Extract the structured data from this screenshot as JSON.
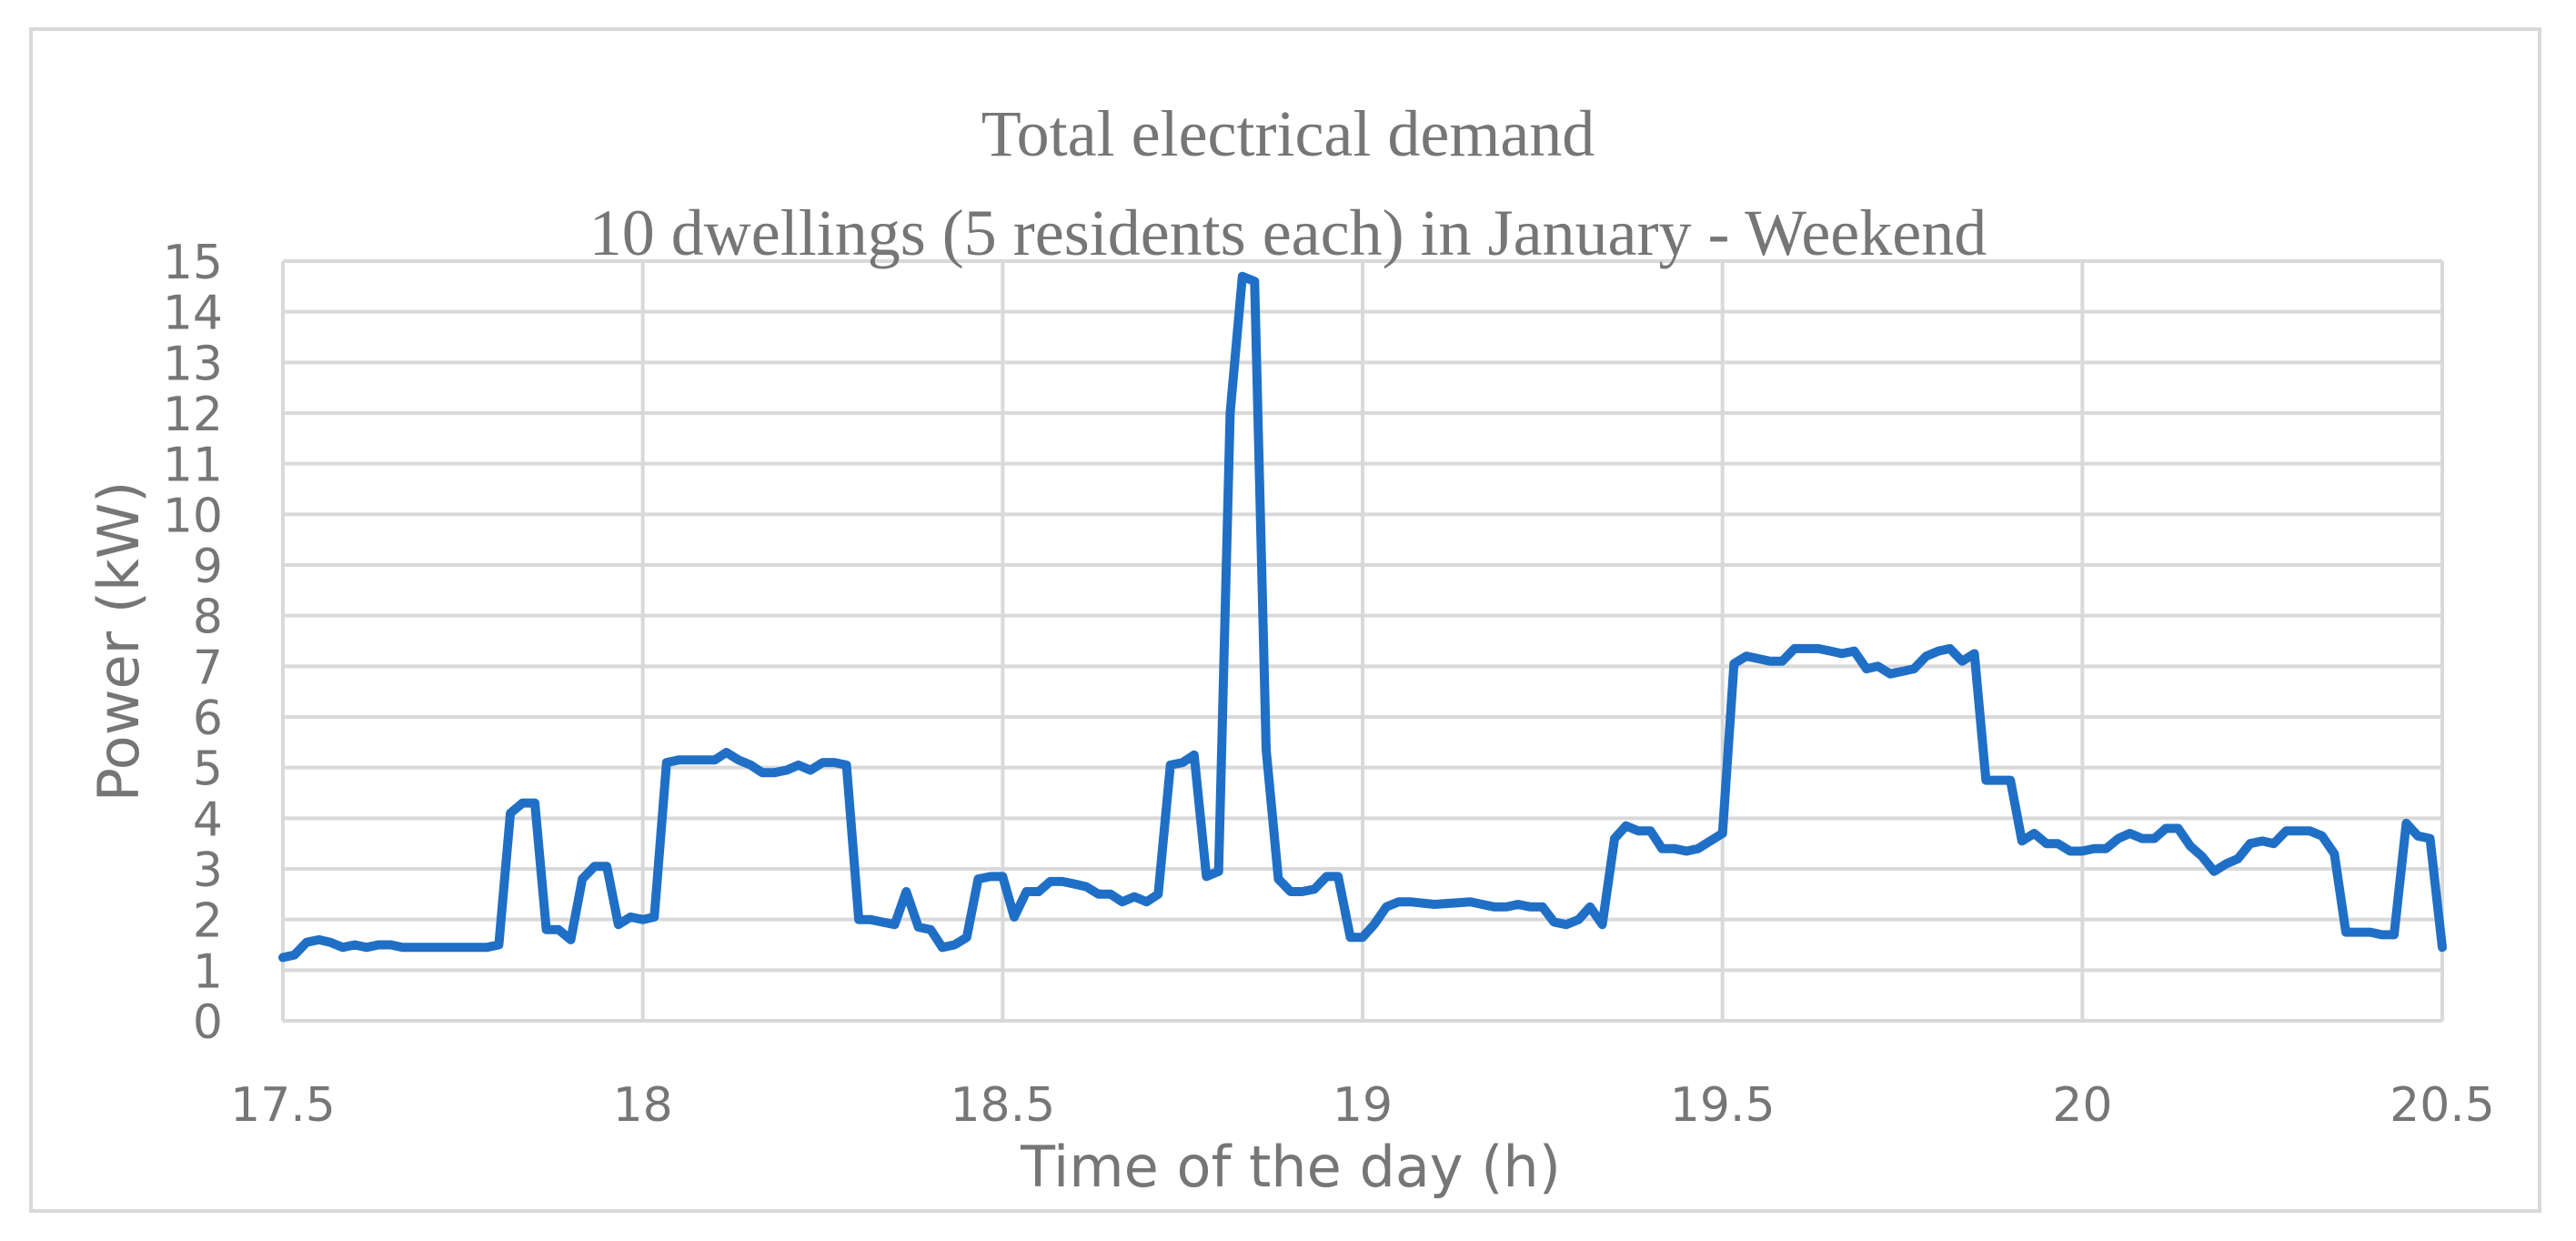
{
  "chart_data": {
    "type": "line",
    "title": "Total electrical demand",
    "subtitle": "10 dwellings (5 residents each) in January - Weekend",
    "xlabel": "Time of the day (h)",
    "ylabel": "Power (kW)",
    "xlim": [
      17.5,
      20.5
    ],
    "ylim": [
      0,
      15
    ],
    "x_ticks": [
      17.5,
      18,
      18.5,
      19,
      19.5,
      20,
      20.5
    ],
    "x_tick_labels": [
      "17.5",
      "18",
      "18.5",
      "19",
      "19.5",
      "20",
      "20.5"
    ],
    "y_ticks": [
      0,
      1,
      2,
      3,
      4,
      5,
      6,
      7,
      8,
      9,
      10,
      11,
      12,
      13,
      14,
      15
    ],
    "y_tick_labels": [
      "0",
      "1",
      "2",
      "3",
      "4",
      "5",
      "6",
      "7",
      "8",
      "9",
      "10",
      "11",
      "12",
      "13",
      "14",
      "15"
    ],
    "grid": true,
    "legend": "none",
    "colors": {
      "line": "#1f6fc6",
      "grid": "#d9d9d9",
      "text": "#767676",
      "frame": "#d9d9d9"
    },
    "series": [
      {
        "values": [
          [
            17.5,
            1.25
          ],
          [
            17.516,
            1.3
          ],
          [
            17.533,
            1.55
          ],
          [
            17.55,
            1.6
          ],
          [
            17.566,
            1.55
          ],
          [
            17.583,
            1.45
          ],
          [
            17.6,
            1.5
          ],
          [
            17.616,
            1.45
          ],
          [
            17.633,
            1.5
          ],
          [
            17.65,
            1.5
          ],
          [
            17.666,
            1.45
          ],
          [
            17.7,
            1.45
          ],
          [
            17.75,
            1.45
          ],
          [
            17.783,
            1.45
          ],
          [
            17.8,
            1.5
          ],
          [
            17.816,
            4.1
          ],
          [
            17.833,
            4.3
          ],
          [
            17.85,
            4.3
          ],
          [
            17.866,
            1.8
          ],
          [
            17.883,
            1.8
          ],
          [
            17.9,
            1.6
          ],
          [
            17.916,
            2.8
          ],
          [
            17.933,
            3.05
          ],
          [
            17.95,
            3.05
          ],
          [
            17.966,
            1.9
          ],
          [
            17.983,
            2.05
          ],
          [
            18.0,
            2.0
          ],
          [
            18.016,
            2.05
          ],
          [
            18.033,
            5.1
          ],
          [
            18.05,
            5.15
          ],
          [
            18.066,
            5.15
          ],
          [
            18.1,
            5.15
          ],
          [
            18.116,
            5.3
          ],
          [
            18.133,
            5.15
          ],
          [
            18.15,
            5.05
          ],
          [
            18.166,
            4.9
          ],
          [
            18.183,
            4.9
          ],
          [
            18.2,
            4.95
          ],
          [
            18.216,
            5.05
          ],
          [
            18.233,
            4.95
          ],
          [
            18.25,
            5.1
          ],
          [
            18.266,
            5.1
          ],
          [
            18.283,
            5.05
          ],
          [
            18.3,
            2.0
          ],
          [
            18.316,
            2.0
          ],
          [
            18.333,
            1.95
          ],
          [
            18.35,
            1.9
          ],
          [
            18.366,
            2.55
          ],
          [
            18.383,
            1.85
          ],
          [
            18.4,
            1.8
          ],
          [
            18.416,
            1.45
          ],
          [
            18.433,
            1.5
          ],
          [
            18.45,
            1.65
          ],
          [
            18.466,
            2.8
          ],
          [
            18.483,
            2.85
          ],
          [
            18.5,
            2.85
          ],
          [
            18.516,
            2.05
          ],
          [
            18.533,
            2.55
          ],
          [
            18.55,
            2.55
          ],
          [
            18.566,
            2.75
          ],
          [
            18.583,
            2.75
          ],
          [
            18.6,
            2.7
          ],
          [
            18.616,
            2.65
          ],
          [
            18.633,
            2.5
          ],
          [
            18.65,
            2.5
          ],
          [
            18.666,
            2.35
          ],
          [
            18.683,
            2.45
          ],
          [
            18.7,
            2.35
          ],
          [
            18.716,
            2.5
          ],
          [
            18.733,
            5.05
          ],
          [
            18.75,
            5.1
          ],
          [
            18.766,
            5.25
          ],
          [
            18.783,
            2.85
          ],
          [
            18.8,
            2.95
          ],
          [
            18.816,
            12.0
          ],
          [
            18.833,
            14.7
          ],
          [
            18.85,
            14.6
          ],
          [
            18.866,
            5.35
          ],
          [
            18.883,
            2.8
          ],
          [
            18.9,
            2.55
          ],
          [
            18.916,
            2.55
          ],
          [
            18.933,
            2.6
          ],
          [
            18.95,
            2.85
          ],
          [
            18.966,
            2.85
          ],
          [
            18.983,
            1.65
          ],
          [
            19.0,
            1.65
          ],
          [
            19.016,
            1.9
          ],
          [
            19.033,
            2.25
          ],
          [
            19.05,
            2.35
          ],
          [
            19.066,
            2.35
          ],
          [
            19.1,
            2.3
          ],
          [
            19.15,
            2.35
          ],
          [
            19.166,
            2.3
          ],
          [
            19.183,
            2.25
          ],
          [
            19.2,
            2.25
          ],
          [
            19.216,
            2.3
          ],
          [
            19.233,
            2.25
          ],
          [
            19.25,
            2.25
          ],
          [
            19.266,
            1.95
          ],
          [
            19.283,
            1.9
          ],
          [
            19.3,
            2.0
          ],
          [
            19.316,
            2.25
          ],
          [
            19.333,
            1.9
          ],
          [
            19.35,
            3.6
          ],
          [
            19.366,
            3.85
          ],
          [
            19.383,
            3.75
          ],
          [
            19.4,
            3.75
          ],
          [
            19.416,
            3.4
          ],
          [
            19.433,
            3.4
          ],
          [
            19.45,
            3.35
          ],
          [
            19.466,
            3.4
          ],
          [
            19.483,
            3.55
          ],
          [
            19.5,
            3.7
          ],
          [
            19.516,
            7.05
          ],
          [
            19.533,
            7.2
          ],
          [
            19.55,
            7.15
          ],
          [
            19.566,
            7.1
          ],
          [
            19.583,
            7.1
          ],
          [
            19.6,
            7.35
          ],
          [
            19.616,
            7.35
          ],
          [
            19.633,
            7.35
          ],
          [
            19.65,
            7.3
          ],
          [
            19.666,
            7.25
          ],
          [
            19.683,
            7.3
          ],
          [
            19.7,
            6.95
          ],
          [
            19.716,
            7.0
          ],
          [
            19.733,
            6.85
          ],
          [
            19.75,
            6.9
          ],
          [
            19.766,
            6.95
          ],
          [
            19.783,
            7.2
          ],
          [
            19.8,
            7.3
          ],
          [
            19.816,
            7.35
          ],
          [
            19.833,
            7.1
          ],
          [
            19.85,
            7.25
          ],
          [
            19.866,
            4.75
          ],
          [
            19.883,
            4.75
          ],
          [
            19.9,
            4.75
          ],
          [
            19.916,
            3.55
          ],
          [
            19.933,
            3.7
          ],
          [
            19.95,
            3.5
          ],
          [
            19.966,
            3.5
          ],
          [
            19.983,
            3.35
          ],
          [
            20.0,
            3.35
          ],
          [
            20.016,
            3.4
          ],
          [
            20.033,
            3.4
          ],
          [
            20.05,
            3.6
          ],
          [
            20.066,
            3.7
          ],
          [
            20.083,
            3.6
          ],
          [
            20.1,
            3.6
          ],
          [
            20.116,
            3.8
          ],
          [
            20.133,
            3.8
          ],
          [
            20.15,
            3.45
          ],
          [
            20.166,
            3.25
          ],
          [
            20.183,
            2.95
          ],
          [
            20.2,
            3.1
          ],
          [
            20.216,
            3.2
          ],
          [
            20.233,
            3.5
          ],
          [
            20.25,
            3.55
          ],
          [
            20.266,
            3.5
          ],
          [
            20.283,
            3.75
          ],
          [
            20.3,
            3.75
          ],
          [
            20.316,
            3.75
          ],
          [
            20.333,
            3.65
          ],
          [
            20.35,
            3.3
          ],
          [
            20.366,
            1.75
          ],
          [
            20.383,
            1.75
          ],
          [
            20.4,
            1.75
          ],
          [
            20.416,
            1.7
          ],
          [
            20.433,
            1.7
          ],
          [
            20.45,
            3.9
          ],
          [
            20.466,
            3.65
          ],
          [
            20.483,
            3.6
          ],
          [
            20.5,
            1.45
          ],
          [
            20.516,
            1.4
          ],
          [
            20.533,
            1.4
          ]
        ]
      }
    ]
  }
}
